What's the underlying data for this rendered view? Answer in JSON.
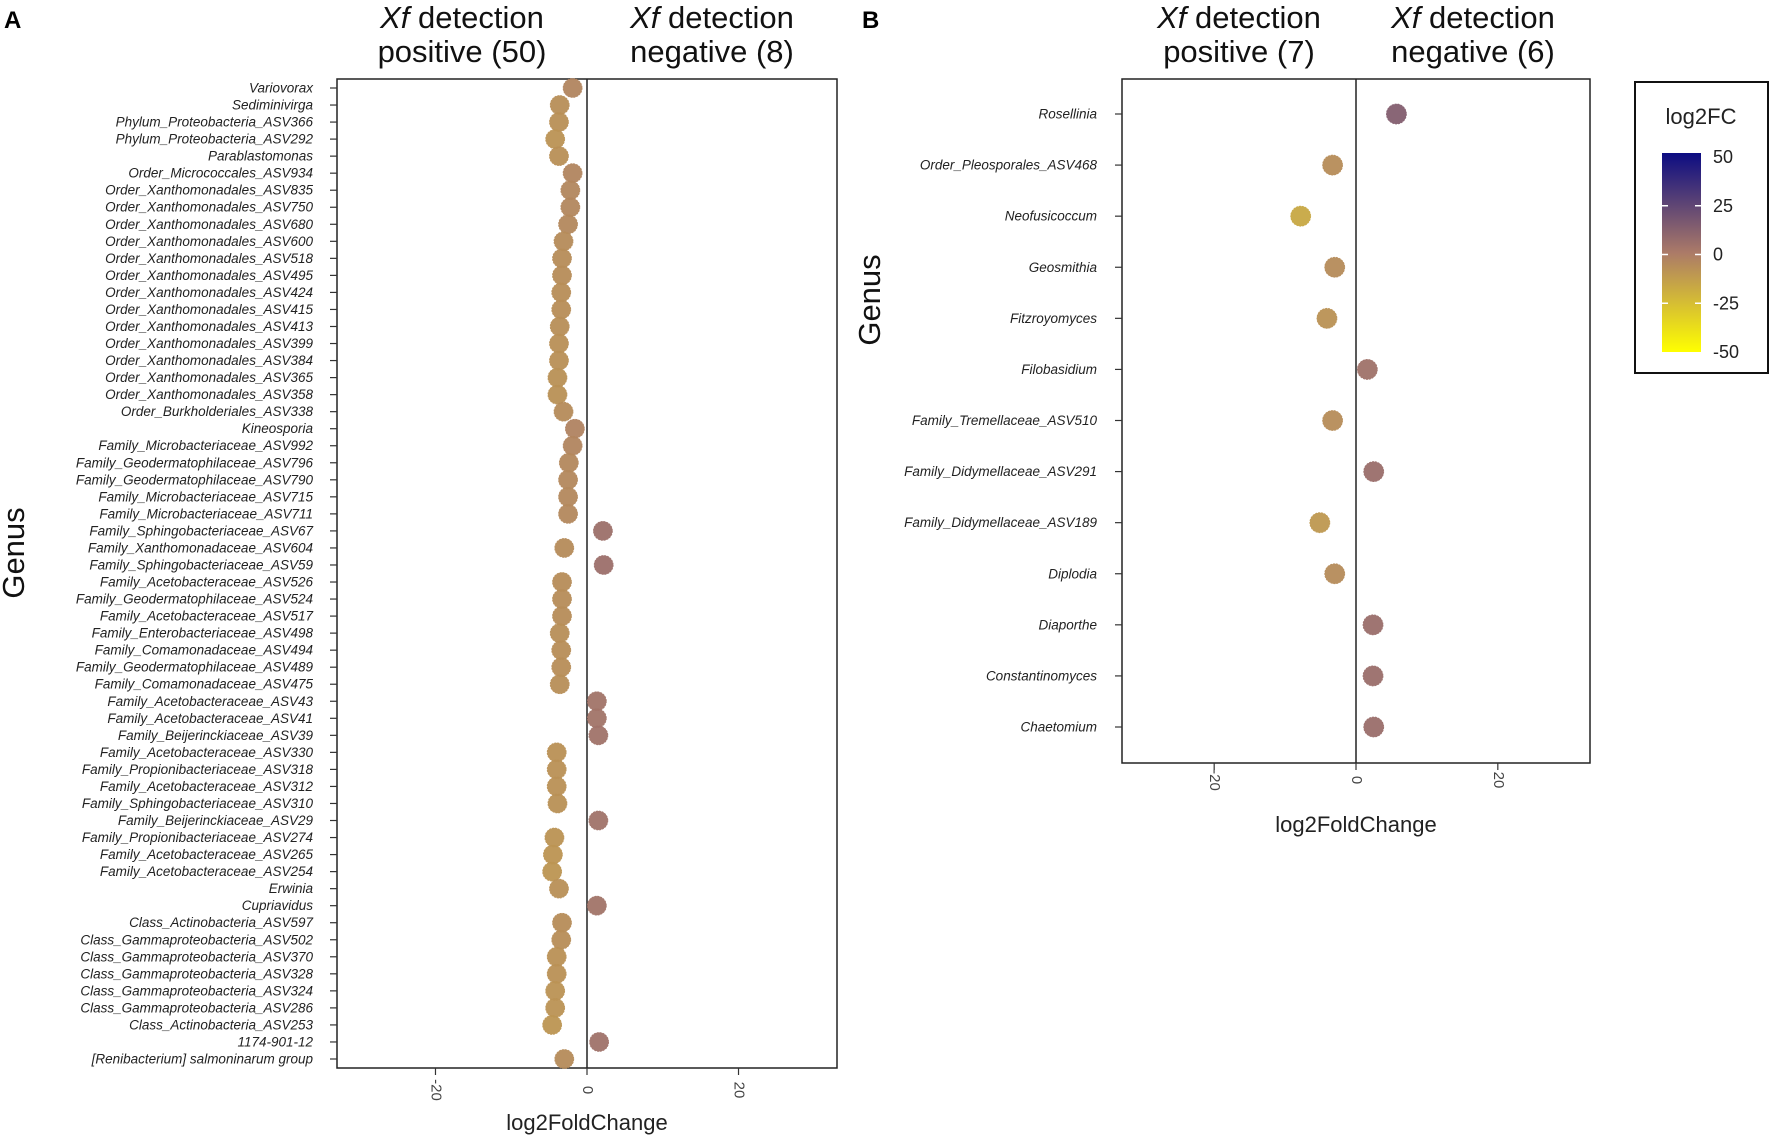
{
  "chart_data": [
    {
      "panel": "A",
      "type": "scatter",
      "xlabel": "log2FoldChange",
      "ylabel": "Genus",
      "xlim": [
        -33,
        33
      ],
      "xticks": [
        -20,
        0,
        20
      ],
      "vline": 0,
      "groups": [
        {
          "italic": "Xf",
          "line1": " detection",
          "line2": "positive (50)"
        },
        {
          "italic": "Xf",
          "line1": " detection",
          "line2": "negative (8)"
        }
      ],
      "categories": [
        "Variovorax",
        "Sediminivirga",
        "Phylum_Proteobacteria_ASV366",
        "Phylum_Proteobacteria_ASV292",
        "Parablastomonas",
        "Order_Micrococcales_ASV934",
        "Order_Xanthomonadales_ASV835",
        "Order_Xanthomonadales_ASV750",
        "Order_Xanthomonadales_ASV680",
        "Order_Xanthomonadales_ASV600",
        "Order_Xanthomonadales_ASV518",
        "Order_Xanthomonadales_ASV495",
        "Order_Xanthomonadales_ASV424",
        "Order_Xanthomonadales_ASV415",
        "Order_Xanthomonadales_ASV413",
        "Order_Xanthomonadales_ASV399",
        "Order_Xanthomonadales_ASV384",
        "Order_Xanthomonadales_ASV365",
        "Order_Xanthomonadales_ASV358",
        "Order_Burkholderiales_ASV338",
        "Kineosporia",
        "Family_Microbacteriaceae_ASV992",
        "Family_Geodermatophilaceae_ASV796",
        "Family_Geodermatophilaceae_ASV790",
        "Family_Microbacteriaceae_ASV715",
        "Family_Microbacteriaceae_ASV711",
        "Family_Sphingobacteriaceae_ASV67",
        "Family_Xanthomonadaceae_ASV604",
        "Family_Sphingobacteriaceae_ASV59",
        "Family_Acetobacteraceae_ASV526",
        "Family_Geodermatophilaceae_ASV524",
        "Family_Acetobacteraceae_ASV517",
        "Family_Enterobacteriaceae_ASV498",
        "Family_Comamonadaceae_ASV494",
        "Family_Geodermatophilaceae_ASV489",
        "Family_Comamonadaceae_ASV475",
        "Family_Acetobacteraceae_ASV43",
        "Family_Acetobacteraceae_ASV41",
        "Family_Beijerinckiaceae_ASV39",
        "Family_Acetobacteraceae_ASV330",
        "Family_Propionibacteriaceae_ASV318",
        "Family_Acetobacteraceae_ASV312",
        "Family_Sphingobacteriaceae_ASV310",
        "Family_Beijerinckiaceae_ASV29",
        "Family_Propionibacteriaceae_ASV274",
        "Family_Acetobacteraceae_ASV265",
        "Family_Acetobacteraceae_ASV254",
        "Erwinia",
        "Cupriavidus",
        "Class_Actinobacteria_ASV597",
        "Class_Gammaproteobacteria_ASV502",
        "Class_Gammaproteobacteria_ASV370",
        "Class_Gammaproteobacteria_ASV328",
        "Class_Gammaproteobacteria_ASV324",
        "Class_Gammaproteobacteria_ASV286",
        "Class_Actinobacteria_ASV253",
        "1174-901-12",
        "[Renibacterium] salmoninarum group"
      ],
      "values": [
        -1.9,
        -3.6,
        -3.7,
        -4.2,
        -3.7,
        -1.9,
        -2.2,
        -2.2,
        -2.5,
        -3.1,
        -3.3,
        -3.3,
        -3.4,
        -3.4,
        -3.6,
        -3.7,
        -3.7,
        -3.9,
        -3.9,
        -3.1,
        -1.6,
        -1.9,
        -2.4,
        -2.5,
        -2.5,
        -2.5,
        2.1,
        -3.0,
        2.2,
        -3.3,
        -3.3,
        -3.3,
        -3.6,
        -3.4,
        -3.4,
        -3.6,
        1.3,
        1.3,
        1.5,
        -4.0,
        -4.0,
        -4.0,
        -3.9,
        1.5,
        -4.3,
        -4.5,
        -4.6,
        -3.7,
        1.3,
        -3.3,
        -3.4,
        -4.0,
        -4.0,
        -4.2,
        -4.2,
        -4.6,
        1.6,
        -3.0
      ]
    },
    {
      "panel": "B",
      "type": "scatter",
      "xlabel": "log2FoldChange",
      "ylabel": "Genus",
      "xlim": [
        -33,
        33
      ],
      "xticks": [
        -20,
        0,
        20
      ],
      "vline": 0,
      "groups": [
        {
          "italic": "Xf",
          "line1": " detection",
          "line2": "positive (7)"
        },
        {
          "italic": "Xf",
          "line1": " detection",
          "line2": "negative (6)"
        }
      ],
      "categories": [
        "Rosellinia",
        "Order_Pleosporales_ASV468",
        "Neofusicoccum",
        "Geosmithia",
        "Fitzroyomyces",
        "Filobasidium",
        "Family_Tremellaceae_ASV510",
        "Family_Didymellaceae_ASV291",
        "Family_Didymellaceae_ASV189",
        "Diplodia",
        "Diaporthe",
        "Constantinomyces",
        "Chaetomium"
      ],
      "values": [
        5.7,
        -3.3,
        -7.8,
        -3.0,
        -4.1,
        1.6,
        -3.3,
        2.5,
        -5.1,
        -3.0,
        2.4,
        2.4,
        2.5
      ]
    }
  ],
  "legend": {
    "title": "log2FC",
    "breaks": [
      "50",
      "25",
      "0",
      "-25",
      "-50"
    ],
    "range": [
      -50,
      50
    ],
    "colors": {
      "low": "#ffff00",
      "mid": "#ab7a68",
      "high": "#0c0c82"
    }
  }
}
